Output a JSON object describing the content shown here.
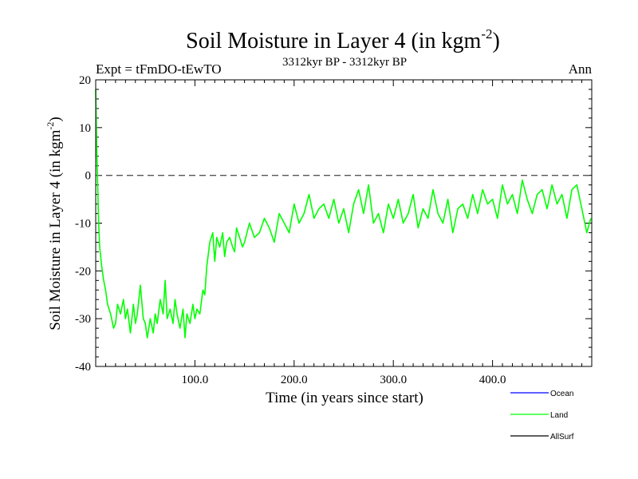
{
  "chart_data": {
    "type": "line",
    "title": "Soil Moisture in Layer 4 (in kgm",
    "title_sup": "-2",
    "title_end": ")",
    "subtitle_left": "Expt = tFmDO-tEwTO",
    "subtitle_center": "3312kyr BP - 3312kyr BP",
    "subtitle_right": "Ann",
    "xlabel": "Time (in years since start)",
    "ylabel": "Soil Moisture in Layer 4 (in kgm",
    "ylabel_sup": "-2",
    "ylabel_end": ")",
    "xlim": [
      0,
      500
    ],
    "ylim": [
      -40,
      20
    ],
    "x_ticks": [
      100,
      200,
      300,
      400
    ],
    "x_tick_labels": [
      "100.0",
      "200.0",
      "300.0",
      "400.0"
    ],
    "y_ticks": [
      -40,
      -30,
      -20,
      -10,
      0,
      10,
      20
    ],
    "y_tick_labels": [
      "-40",
      "-30",
      "-20",
      "-10",
      "0",
      "10",
      "20"
    ],
    "reference_line": 0,
    "colors": {
      "ocean": "#0000ff",
      "land": "#00ff00",
      "allsurf": "#000000"
    },
    "legend": [
      "Ocean",
      "Land",
      "AllSurf"
    ],
    "series": [
      {
        "name": "Land",
        "x": [
          0,
          1,
          2,
          3,
          4,
          6,
          8,
          10,
          12,
          15,
          18,
          20,
          22,
          25,
          28,
          30,
          32,
          35,
          38,
          40,
          42,
          45,
          48,
          50,
          52,
          55,
          58,
          60,
          62,
          65,
          68,
          70,
          72,
          75,
          78,
          80,
          82,
          85,
          88,
          90,
          92,
          95,
          98,
          100,
          102,
          105,
          108,
          110,
          112,
          115,
          118,
          120,
          122,
          125,
          128,
          130,
          132,
          135,
          138,
          140,
          142,
          145,
          148,
          150,
          155,
          160,
          165,
          170,
          175,
          180,
          185,
          190,
          195,
          200,
          205,
          210,
          215,
          220,
          225,
          230,
          235,
          240,
          245,
          250,
          255,
          260,
          265,
          270,
          275,
          280,
          285,
          290,
          295,
          300,
          305,
          310,
          315,
          320,
          325,
          330,
          335,
          340,
          345,
          350,
          355,
          360,
          365,
          370,
          375,
          380,
          385,
          390,
          395,
          400,
          405,
          410,
          415,
          420,
          425,
          430,
          435,
          440,
          445,
          450,
          455,
          460,
          465,
          470,
          475,
          480,
          485,
          490,
          495,
          499
        ],
        "values": [
          18,
          6,
          -2,
          -10,
          -15,
          -19,
          -22,
          -24,
          -27,
          -29,
          -32,
          -31,
          -27,
          -29,
          -26,
          -30,
          -28,
          -33,
          -27,
          -31,
          -29,
          -23,
          -30,
          -31,
          -34,
          -30,
          -33,
          -29,
          -31,
          -26,
          -29,
          -22,
          -30,
          -28,
          -31,
          -26,
          -29,
          -32,
          -28,
          -34,
          -29,
          -31,
          -27,
          -30,
          -28,
          -29,
          -24,
          -25,
          -19,
          -14,
          -12,
          -18,
          -13,
          -15,
          -12,
          -17,
          -14,
          -13,
          -15,
          -16,
          -11,
          -13,
          -15,
          -14,
          -10,
          -13,
          -12,
          -9,
          -11,
          -14,
          -8,
          -10,
          -12,
          -6,
          -10,
          -8,
          -4,
          -9,
          -7,
          -6,
          -9,
          -5,
          -10,
          -7,
          -12,
          -6,
          -3,
          -8,
          -2,
          -10,
          -8,
          -12,
          -6,
          -9,
          -5,
          -10,
          -8,
          -4,
          -11,
          -7,
          -9,
          -3,
          -8,
          -10,
          -5,
          -12,
          -7,
          -6,
          -9,
          -4,
          -8,
          -3,
          -6,
          -5,
          -9,
          -2,
          -6,
          -4,
          -8,
          -1,
          -5,
          -8,
          -4,
          -3,
          -7,
          -2,
          -6,
          -4,
          -9,
          -3,
          -2,
          -7,
          -12,
          -9
        ]
      }
    ]
  }
}
